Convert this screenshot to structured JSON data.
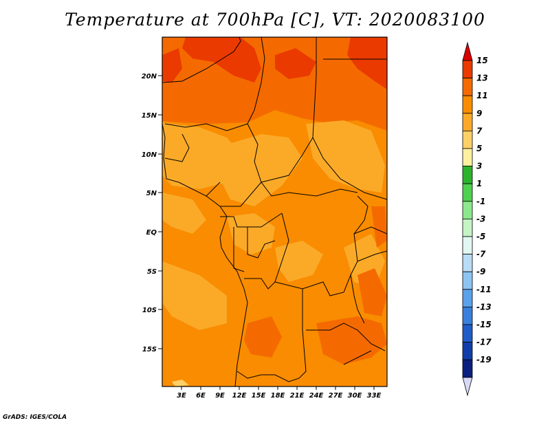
{
  "title": "Temperature at 700hPa [C], VT: 2020083100",
  "credit": "GrADS: IGES/COLA",
  "axes": {
    "lat_labels": [
      "20N",
      "15N",
      "10N",
      "5N",
      "EQ",
      "5S",
      "10S",
      "15S"
    ],
    "lon_labels": [
      "3E",
      "6E",
      "9E",
      "12E",
      "15E",
      "18E",
      "21E",
      "24E",
      "27E",
      "30E",
      "33E"
    ]
  },
  "colorbar": {
    "labels": [
      "15",
      "13",
      "11",
      "9",
      "7",
      "5",
      "3",
      "1",
      "-1",
      "-3",
      "-5",
      "-7",
      "-9",
      "-11",
      "-13",
      "-15",
      "-17",
      "-19"
    ],
    "colors": [
      "#d80000",
      "#ea3a00",
      "#f46a00",
      "#f98c00",
      "#fbaa28",
      "#fdd067",
      "#fff0a0",
      "#2cb22c",
      "#4fd04f",
      "#8de88d",
      "#c4f4c4",
      "#e2f7f2",
      "#b8dcf6",
      "#8cc4f2",
      "#5aa2ea",
      "#3a7fdc",
      "#1f5cc8",
      "#103ea8",
      "#0a2080",
      "#d8d8f8"
    ]
  },
  "chart_data": {
    "type": "heatmap",
    "title": "Temperature at 700hPa [C], VT: 2020083100",
    "xlabel": "",
    "ylabel": "",
    "x_range_deg": [
      0,
      35
    ],
    "y_range_deg": [
      -20,
      25
    ],
    "dominant_value_ranges_C": {
      "northern_sahara_band": [
        11,
        15
      ],
      "central_africa": [
        9,
        11
      ],
      "highlands_west_central": [
        7,
        9
      ],
      "east_african_lakes": [
        11,
        13
      ],
      "southern_angola_zambia": [
        11,
        13
      ]
    }
  }
}
